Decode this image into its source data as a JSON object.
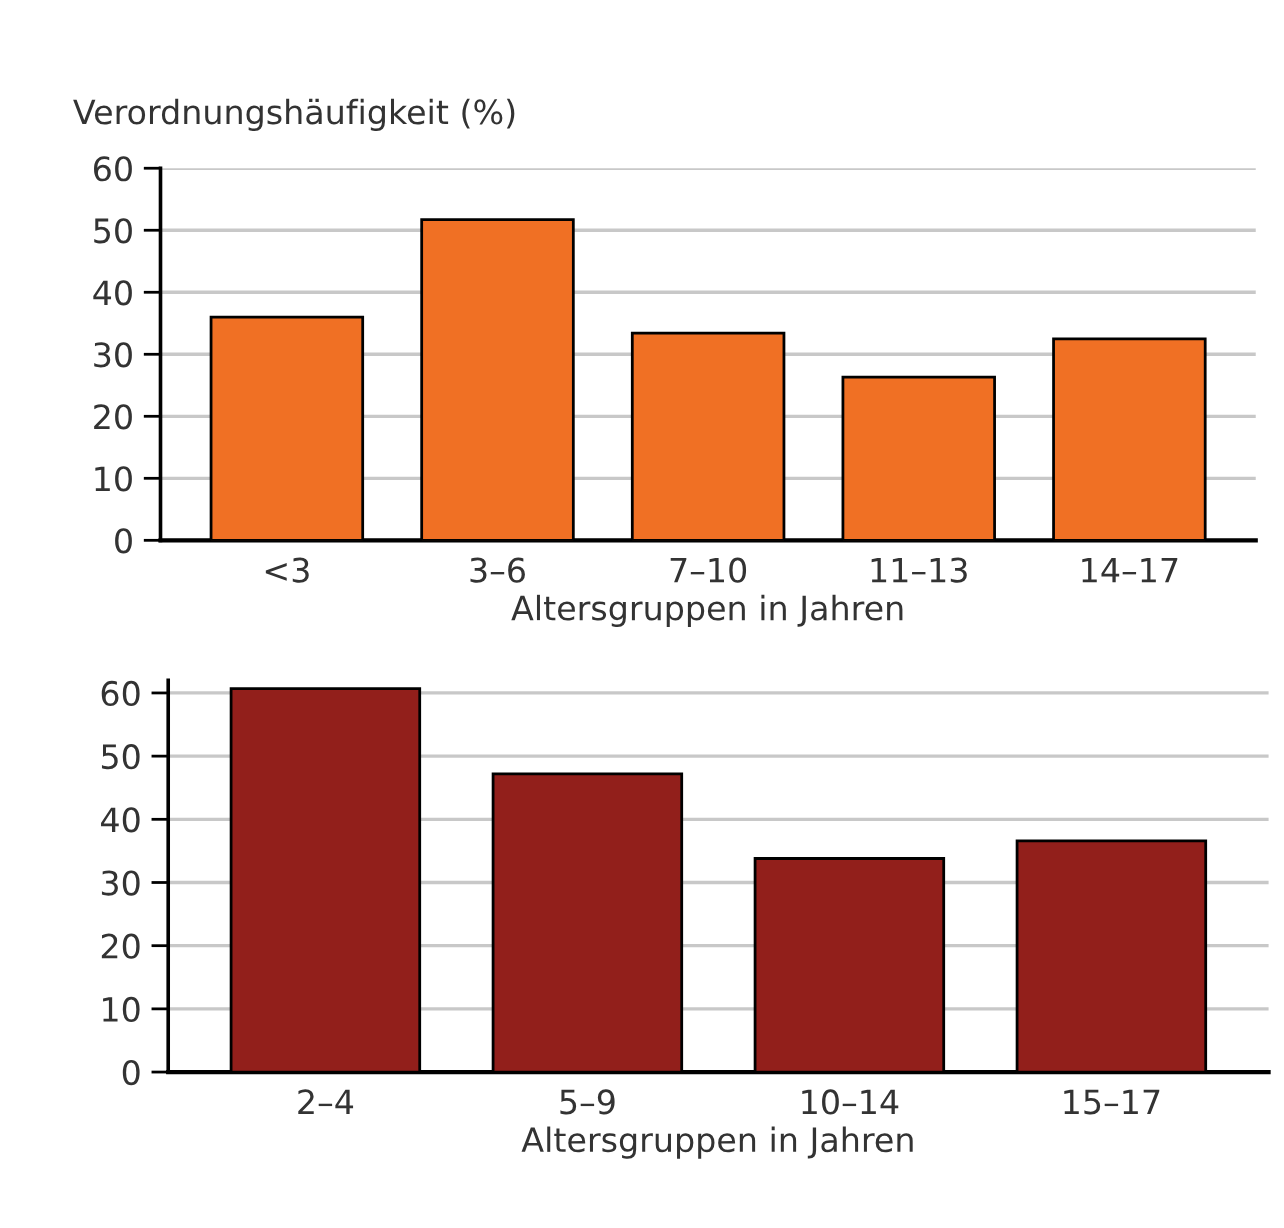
{
  "chart_data": [
    {
      "type": "bar",
      "ylabel": "Verordnungshäufigkeit (%)",
      "xlabel": "Altersgruppen in Jahren",
      "categories": [
        "<3",
        "3–6",
        "7–10",
        "11–13",
        "14–17"
      ],
      "values": [
        36.0,
        51.7,
        33.4,
        26.3,
        32.5
      ],
      "color": "#f07024",
      "ylim": [
        0,
        60
      ],
      "yticks": [
        0,
        10,
        20,
        30,
        40,
        50,
        60
      ],
      "grid": "y"
    },
    {
      "type": "bar",
      "xlabel": "Altersgruppen in Jahren",
      "categories": [
        "2–4",
        "5–9",
        "10–14",
        "15–17"
      ],
      "values": [
        60.7,
        47.2,
        33.8,
        36.6
      ],
      "color": "#921f1b",
      "ylim": [
        0,
        62
      ],
      "yticks": [
        0,
        10,
        20,
        30,
        40,
        50,
        60
      ],
      "grid": "y"
    }
  ]
}
